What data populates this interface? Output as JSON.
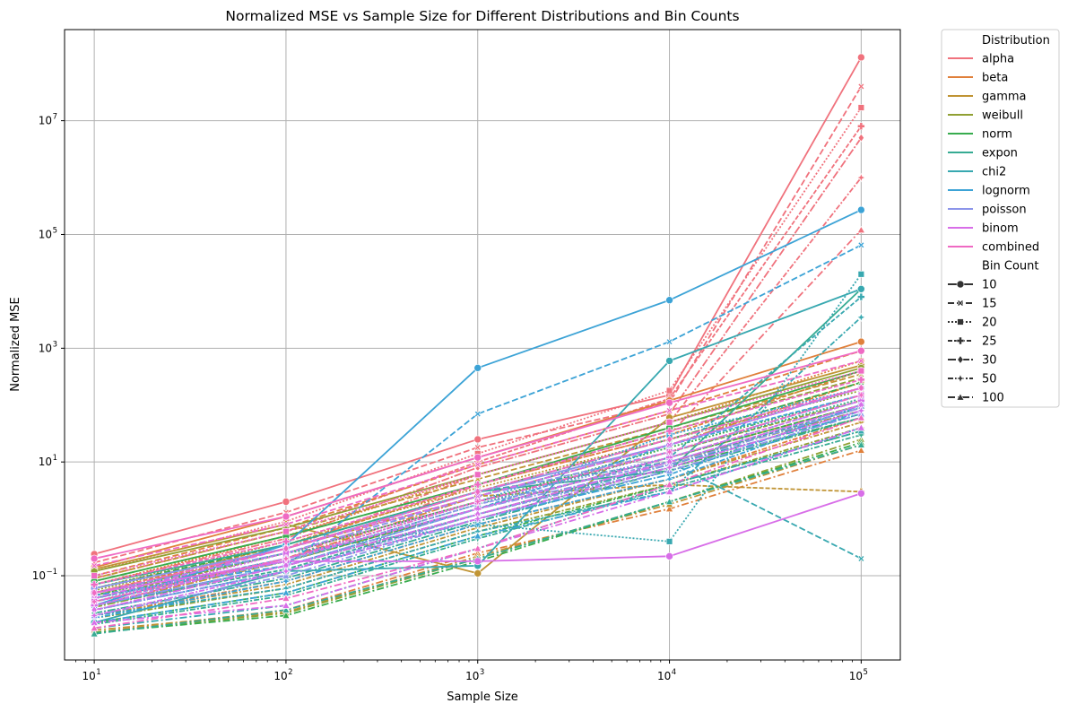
{
  "chart_data": {
    "type": "line",
    "title": "Normalized MSE vs Sample Size for Different Distributions and Bin Counts",
    "xlabel": "Sample Size",
    "ylabel": "Normalized MSE",
    "x_scale": "log",
    "y_scale": "log",
    "xlim": [
      7,
      160000
    ],
    "ylim": [
      0.0033,
      400000000
    ],
    "x": [
      10,
      100,
      1000,
      10000,
      100000
    ],
    "x_ticks": [
      {
        "value": 10,
        "base": "10",
        "exp": "1"
      },
      {
        "value": 100,
        "base": "10",
        "exp": "2"
      },
      {
        "value": 1000,
        "base": "10",
        "exp": "3"
      },
      {
        "value": 10000,
        "base": "10",
        "exp": "4"
      },
      {
        "value": 100000,
        "base": "10",
        "exp": "5"
      }
    ],
    "y_ticks": [
      {
        "value": 0.1,
        "base": "10",
        "exp": "−1"
      },
      {
        "value": 10,
        "base": "10",
        "exp": "1"
      },
      {
        "value": 1000,
        "base": "10",
        "exp": "3"
      },
      {
        "value": 100000,
        "base": "10",
        "exp": "5"
      },
      {
        "value": 10000000,
        "base": "10",
        "exp": "7"
      }
    ],
    "grid": true,
    "legend": {
      "placement": "outside-right",
      "hue_title": "Distribution",
      "style_title": "Bin Count",
      "distributions": [
        {
          "name": "alpha",
          "color": "#f0727d"
        },
        {
          "name": "beta",
          "color": "#e0803b"
        },
        {
          "name": "gamma",
          "color": "#c09434"
        },
        {
          "name": "weibull",
          "color": "#90a033"
        },
        {
          "name": "norm",
          "color": "#38ac4e"
        },
        {
          "name": "expon",
          "color": "#36ab93"
        },
        {
          "name": "chi2",
          "color": "#38a8b0"
        },
        {
          "name": "lognorm",
          "color": "#3ca3d6"
        },
        {
          "name": "poisson",
          "color": "#8c95ea"
        },
        {
          "name": "binom",
          "color": "#d86ee8"
        },
        {
          "name": "combined",
          "color": "#ef6ac3"
        }
      ],
      "bin_counts": [
        {
          "label": "10",
          "dash": "",
          "marker": "circle"
        },
        {
          "label": "15",
          "dash": "7,3",
          "marker": "x"
        },
        {
          "label": "20",
          "dash": "2,2",
          "marker": "square"
        },
        {
          "label": "25",
          "dash": "5,2",
          "marker": "plus"
        },
        {
          "label": "30",
          "dash": "9,2,2,2",
          "marker": "diamond"
        },
        {
          "label": "50",
          "dash": "6,2,2,2",
          "marker": "star"
        },
        {
          "label": "100",
          "dash": "8,3,2,3",
          "marker": "triangle"
        }
      ]
    },
    "series": [
      {
        "distribution": "alpha",
        "bin_count": "10",
        "values": [
          0.24,
          2.0,
          25,
          150,
          130000000
        ]
      },
      {
        "distribution": "alpha",
        "bin_count": "15",
        "values": [
          0.17,
          1.3,
          18,
          110,
          40000000
        ]
      },
      {
        "distribution": "alpha",
        "bin_count": "20",
        "values": [
          0.12,
          0.9,
          14,
          180,
          17000000
        ]
      },
      {
        "distribution": "alpha",
        "bin_count": "25",
        "values": [
          0.09,
          0.6,
          10,
          130,
          8000000
        ]
      },
      {
        "distribution": "alpha",
        "bin_count": "30",
        "values": [
          0.07,
          0.45,
          8,
          70,
          5000000
        ]
      },
      {
        "distribution": "alpha",
        "bin_count": "50",
        "values": [
          0.05,
          0.3,
          6,
          50,
          1000000
        ]
      },
      {
        "distribution": "alpha",
        "bin_count": "100",
        "values": [
          0.03,
          0.2,
          4,
          30,
          120000
        ]
      },
      {
        "distribution": "beta",
        "bin_count": "10",
        "values": [
          0.14,
          1.1,
          12,
          120,
          1300
        ]
      },
      {
        "distribution": "beta",
        "bin_count": "15",
        "values": [
          0.1,
          0.7,
          9,
          80,
          900
        ]
      },
      {
        "distribution": "beta",
        "bin_count": "20",
        "values": [
          0.07,
          0.5,
          6,
          50,
          600
        ]
      },
      {
        "distribution": "beta",
        "bin_count": "25",
        "values": [
          0.05,
          0.35,
          4,
          30,
          400
        ]
      },
      {
        "distribution": "beta",
        "bin_count": "30",
        "values": [
          0.035,
          0.2,
          2.5,
          20,
          250
        ]
      },
      {
        "distribution": "beta",
        "bin_count": "50",
        "values": [
          0.02,
          0.08,
          0.8,
          5,
          60
        ]
      },
      {
        "distribution": "beta",
        "bin_count": "100",
        "values": [
          0.01,
          0.025,
          0.25,
          1.5,
          16
        ]
      },
      {
        "distribution": "gamma",
        "bin_count": "10",
        "values": [
          0.13,
          0.8,
          0.11,
          60,
          500
        ]
      },
      {
        "distribution": "gamma",
        "bin_count": "15",
        "values": [
          0.09,
          0.6,
          5,
          40,
          350
        ]
      },
      {
        "distribution": "gamma",
        "bin_count": "20",
        "values": [
          0.06,
          0.4,
          3.5,
          25,
          250
        ]
      },
      {
        "distribution": "gamma",
        "bin_count": "25",
        "values": [
          0.045,
          0.3,
          2.5,
          4,
          3
        ]
      },
      {
        "distribution": "gamma",
        "bin_count": "30",
        "values": [
          0.03,
          0.18,
          1.5,
          12,
          100
        ]
      },
      {
        "distribution": "gamma",
        "bin_count": "50",
        "values": [
          0.02,
          0.07,
          0.7,
          5,
          50
        ]
      },
      {
        "distribution": "gamma",
        "bin_count": "100",
        "values": [
          0.011,
          0.023,
          0.22,
          1.8,
          20
        ]
      },
      {
        "distribution": "weibull",
        "bin_count": "10",
        "values": [
          0.12,
          0.7,
          6,
          50,
          450
        ]
      },
      {
        "distribution": "weibull",
        "bin_count": "15",
        "values": [
          0.08,
          0.5,
          4,
          35,
          300
        ]
      },
      {
        "distribution": "weibull",
        "bin_count": "20",
        "values": [
          0.055,
          0.35,
          3,
          25,
          180
        ]
      },
      {
        "distribution": "weibull",
        "bin_count": "25",
        "values": [
          0.04,
          0.25,
          2,
          15,
          120
        ]
      },
      {
        "distribution": "weibull",
        "bin_count": "30",
        "values": [
          0.028,
          0.15,
          1.2,
          10,
          80
        ]
      },
      {
        "distribution": "weibull",
        "bin_count": "50",
        "values": [
          0.018,
          0.06,
          0.6,
          4,
          40
        ]
      },
      {
        "distribution": "weibull",
        "bin_count": "100",
        "values": [
          0.01,
          0.022,
          0.2,
          2,
          25
        ]
      },
      {
        "distribution": "norm",
        "bin_count": "10",
        "values": [
          0.08,
          0.5,
          4,
          40,
          400
        ]
      },
      {
        "distribution": "norm",
        "bin_count": "15",
        "values": [
          0.06,
          0.35,
          3,
          25,
          250
        ]
      },
      {
        "distribution": "norm",
        "bin_count": "20",
        "values": [
          0.045,
          0.25,
          2,
          18,
          150
        ]
      },
      {
        "distribution": "norm",
        "bin_count": "25",
        "values": [
          0.035,
          0.18,
          1.5,
          12,
          100
        ]
      },
      {
        "distribution": "norm",
        "bin_count": "30",
        "values": [
          0.025,
          0.12,
          1,
          8,
          60
        ]
      },
      {
        "distribution": "norm",
        "bin_count": "50",
        "values": [
          0.015,
          0.05,
          0.5,
          4,
          35
        ]
      },
      {
        "distribution": "norm",
        "bin_count": "100",
        "values": [
          0.01,
          0.02,
          0.18,
          2,
          22
        ]
      },
      {
        "distribution": "expon",
        "bin_count": "10",
        "values": [
          0.07,
          0.35,
          3,
          7,
          11000
        ]
      },
      {
        "distribution": "expon",
        "bin_count": "15",
        "values": [
          0.05,
          0.25,
          2.5,
          20,
          200
        ]
      },
      {
        "distribution": "expon",
        "bin_count": "20",
        "values": [
          0.04,
          0.18,
          1.8,
          15,
          130
        ]
      },
      {
        "distribution": "expon",
        "bin_count": "25",
        "values": [
          0.03,
          0.13,
          1.2,
          10,
          90
        ]
      },
      {
        "distribution": "expon",
        "bin_count": "30",
        "values": [
          0.022,
          0.09,
          0.9,
          7,
          60
        ]
      },
      {
        "distribution": "expon",
        "bin_count": "50",
        "values": [
          0.014,
          0.045,
          0.45,
          3.5,
          30
        ]
      },
      {
        "distribution": "expon",
        "bin_count": "100",
        "values": [
          0.0095,
          0.025,
          0.2,
          2,
          20
        ]
      },
      {
        "distribution": "chi2",
        "bin_count": "10",
        "values": [
          0.015,
          0.12,
          0.15,
          600,
          11000
        ]
      },
      {
        "distribution": "chi2",
        "bin_count": "15",
        "values": [
          0.06,
          0.3,
          3,
          10,
          0.2
        ]
      },
      {
        "distribution": "chi2",
        "bin_count": "20",
        "values": [
          0.05,
          0.25,
          0.8,
          0.4,
          20000
        ]
      },
      {
        "distribution": "chi2",
        "bin_count": "25",
        "values": [
          0.04,
          0.2,
          1.5,
          12,
          8000
        ]
      },
      {
        "distribution": "chi2",
        "bin_count": "30",
        "values": [
          0.03,
          0.15,
          1.2,
          9,
          70
        ]
      },
      {
        "distribution": "chi2",
        "bin_count": "50",
        "values": [
          0.02,
          0.06,
          0.6,
          3,
          3500
        ]
      },
      {
        "distribution": "chi2",
        "bin_count": "100",
        "values": [
          0.012,
          0.03,
          0.3,
          4,
          35
        ]
      },
      {
        "distribution": "lognorm",
        "bin_count": "10",
        "values": [
          0.03,
          0.35,
          450,
          7000,
          270000
        ]
      },
      {
        "distribution": "lognorm",
        "bin_count": "15",
        "values": [
          0.045,
          0.15,
          70,
          1300,
          65000
        ]
      },
      {
        "distribution": "lognorm",
        "bin_count": "20",
        "values": [
          0.04,
          0.2,
          2,
          30,
          200
        ]
      },
      {
        "distribution": "lognorm",
        "bin_count": "25",
        "values": [
          0.03,
          0.15,
          1.5,
          20,
          150
        ]
      },
      {
        "distribution": "lognorm",
        "bin_count": "30",
        "values": [
          0.025,
          0.12,
          1,
          6,
          100
        ]
      },
      {
        "distribution": "lognorm",
        "bin_count": "50",
        "values": [
          0.018,
          0.08,
          0.8,
          5,
          80
        ]
      },
      {
        "distribution": "lognorm",
        "bin_count": "100",
        "values": [
          0.015,
          0.05,
          0.5,
          3,
          40
        ]
      },
      {
        "distribution": "poisson",
        "bin_count": "10",
        "values": [
          0.06,
          0.3,
          3,
          20,
          200
        ]
      },
      {
        "distribution": "poisson",
        "bin_count": "15",
        "values": [
          0.05,
          0.25,
          2.5,
          15,
          150
        ]
      },
      {
        "distribution": "poisson",
        "bin_count": "20",
        "values": [
          0.04,
          0.2,
          2,
          12,
          120
        ]
      },
      {
        "distribution": "poisson",
        "bin_count": "25",
        "values": [
          0.035,
          0.18,
          1.8,
          10,
          100
        ]
      },
      {
        "distribution": "poisson",
        "bin_count": "30",
        "values": [
          0.03,
          0.15,
          1.5,
          9,
          90
        ]
      },
      {
        "distribution": "poisson",
        "bin_count": "50",
        "values": [
          0.025,
          0.12,
          1.2,
          8,
          80
        ]
      },
      {
        "distribution": "poisson",
        "bin_count": "100",
        "values": [
          0.02,
          0.1,
          1,
          7,
          70
        ]
      },
      {
        "distribution": "binom",
        "bin_count": "10",
        "values": [
          0.05,
          0.18,
          0.18,
          0.22,
          2.8
        ]
      },
      {
        "distribution": "binom",
        "bin_count": "15",
        "values": [
          0.04,
          0.3,
          2.5,
          20,
          200
        ]
      },
      {
        "distribution": "binom",
        "bin_count": "20",
        "values": [
          0.035,
          0.25,
          2,
          15,
          150
        ]
      },
      {
        "distribution": "binom",
        "bin_count": "25",
        "values": [
          0.03,
          0.2,
          1.5,
          12,
          120
        ]
      },
      {
        "distribution": "binom",
        "bin_count": "30",
        "values": [
          0.025,
          0.15,
          1.2,
          10,
          100
        ]
      },
      {
        "distribution": "binom",
        "bin_count": "50",
        "values": [
          0.02,
          0.12,
          1,
          8,
          80
        ]
      },
      {
        "distribution": "binom",
        "bin_count": "100",
        "values": [
          0.015,
          0.03,
          0.3,
          3,
          40
        ]
      },
      {
        "distribution": "combined",
        "bin_count": "10",
        "values": [
          0.2,
          1.1,
          12,
          110,
          900
        ]
      },
      {
        "distribution": "combined",
        "bin_count": "15",
        "values": [
          0.15,
          0.8,
          9,
          80,
          600
        ]
      },
      {
        "distribution": "combined",
        "bin_count": "20",
        "values": [
          0.1,
          0.6,
          6,
          50,
          400
        ]
      },
      {
        "distribution": "combined",
        "bin_count": "25",
        "values": [
          0.07,
          0.4,
          4,
          35,
          280
        ]
      },
      {
        "distribution": "combined",
        "bin_count": "30",
        "values": [
          0.05,
          0.3,
          3,
          25,
          200
        ]
      },
      {
        "distribution": "combined",
        "bin_count": "50",
        "values": [
          0.035,
          0.2,
          2,
          15,
          150
        ]
      },
      {
        "distribution": "combined",
        "bin_count": "100",
        "values": [
          0.012,
          0.04,
          0.3,
          4,
          60
        ]
      }
    ]
  }
}
